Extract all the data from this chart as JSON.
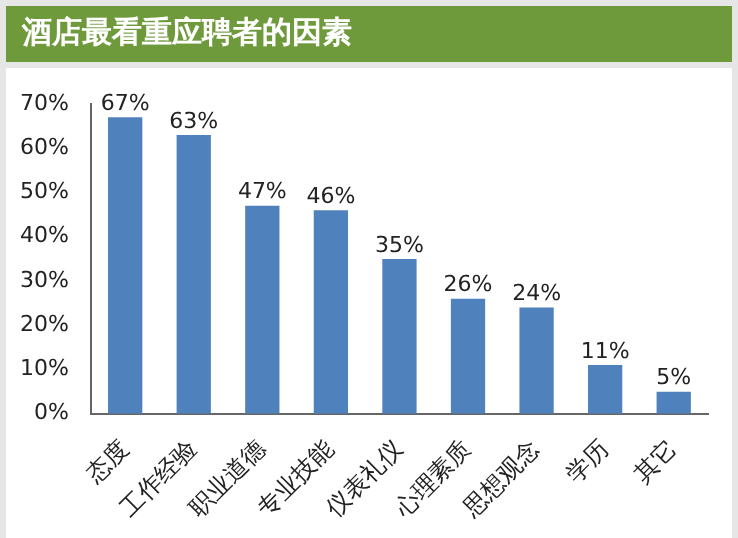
{
  "chart_data": {
    "type": "bar",
    "title": "酒店最看重应聘者的因素",
    "categories": [
      "态度",
      "工作经验",
      "职业道德",
      "专业技能",
      "仪表礼仪",
      "心理素质",
      "思想观念",
      "学历",
      "其它"
    ],
    "values": [
      67,
      63,
      47,
      46,
      35,
      26,
      24,
      11,
      5
    ],
    "value_labels": [
      "67%",
      "63%",
      "47%",
      "46%",
      "35%",
      "26%",
      "24%",
      "11%",
      "5%"
    ],
    "color": "#4f81bd",
    "ylim": [
      0,
      70
    ],
    "yticks": [
      {
        "value": 0,
        "label": "0%"
      },
      {
        "value": 10,
        "label": "10%"
      },
      {
        "value": 20,
        "label": "20%"
      },
      {
        "value": 30,
        "label": "30%"
      },
      {
        "value": 40,
        "label": "40%"
      },
      {
        "value": 50,
        "label": "50%"
      },
      {
        "value": 60,
        "label": "60%"
      },
      {
        "value": 70,
        "label": "70%"
      }
    ],
    "grid": false,
    "legend": false
  }
}
